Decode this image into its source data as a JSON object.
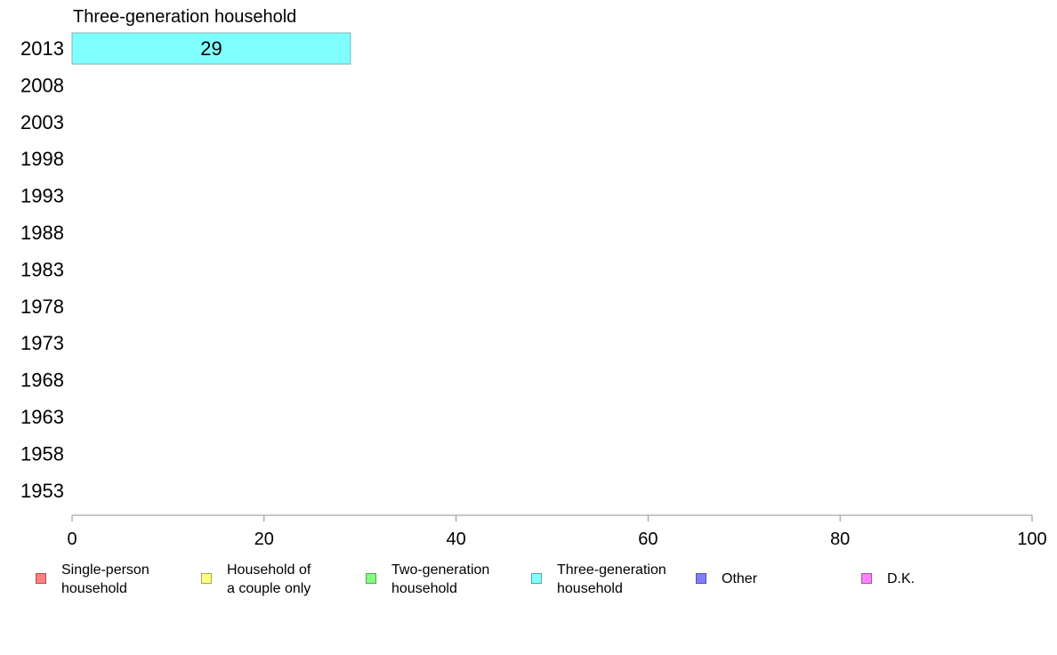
{
  "chart_data": {
    "type": "bar",
    "orientation": "horizontal",
    "stacked": true,
    "categories": [
      "2013",
      "2008",
      "2003",
      "1998",
      "1993",
      "1988",
      "1983",
      "1978",
      "1973",
      "1968",
      "1963",
      "1958",
      "1953"
    ],
    "series": [
      {
        "name": "Single-person\nhousehold",
        "color": "#ff8080",
        "values": [
          null,
          null,
          null,
          null,
          null,
          null,
          null,
          null,
          null,
          null,
          null,
          null,
          null
        ]
      },
      {
        "name": "Household of\na couple only",
        "color": "#ffff80",
        "values": [
          null,
          null,
          null,
          null,
          null,
          null,
          null,
          null,
          null,
          null,
          null,
          null,
          null
        ]
      },
      {
        "name": "Two-generation\nhousehold",
        "color": "#80ff80",
        "values": [
          null,
          null,
          null,
          null,
          null,
          null,
          null,
          null,
          null,
          null,
          null,
          null,
          null
        ]
      },
      {
        "name": "Three-generation\nhousehold",
        "color": "#80ffff",
        "values": [
          29,
          null,
          null,
          null,
          null,
          null,
          null,
          null,
          null,
          null,
          null,
          null,
          null
        ]
      },
      {
        "name": "Other",
        "color": "#8080ff",
        "values": [
          null,
          null,
          null,
          null,
          null,
          null,
          null,
          null,
          null,
          null,
          null,
          null,
          null
        ]
      },
      {
        "name": "D.K.",
        "color": "#ff80ff",
        "values": [
          null,
          null,
          null,
          null,
          null,
          null,
          null,
          null,
          null,
          null,
          null,
          null,
          null
        ]
      }
    ],
    "annotation": "Three-generation household",
    "xlim": [
      0,
      100
    ],
    "xticks": [
      0,
      20,
      40,
      60,
      80,
      100
    ],
    "grid": false,
    "legend_position": "bottom"
  }
}
